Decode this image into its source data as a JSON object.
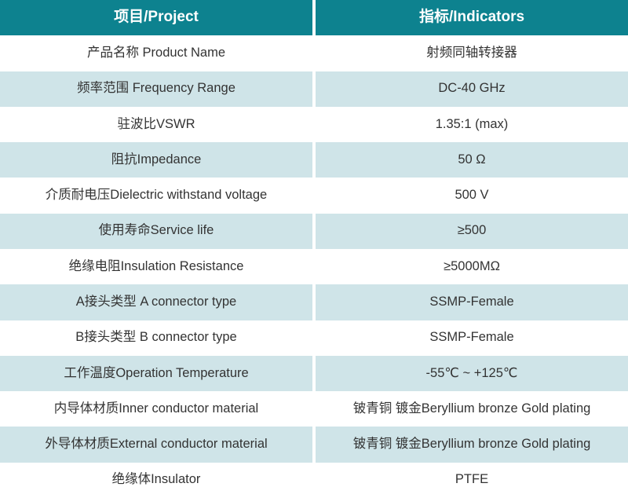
{
  "colors": {
    "header_bg": "#0d828f",
    "header_text": "#ffffff",
    "alt_row_bg": "#cfe4e8",
    "row_bg": "#ffffff",
    "body_text": "#333333"
  },
  "table": {
    "headers": {
      "project": "项目/Project",
      "indicator": "指标/Indicators"
    },
    "rows": [
      {
        "project": "产品名称 Product Name",
        "indicator": "射频同轴转接器"
      },
      {
        "project": "频率范围 Frequency Range",
        "indicator": "DC-40 GHz"
      },
      {
        "project": "驻波比VSWR",
        "indicator": "1.35:1 (max)"
      },
      {
        "project": "阻抗Impedance",
        "indicator": "50 Ω"
      },
      {
        "project": "介质耐电压Dielectric withstand voltage",
        "indicator": "500 V"
      },
      {
        "project": "使用寿命Service life",
        "indicator": "≥500"
      },
      {
        "project": "绝缘电阻Insulation Resistance",
        "indicator": "≥5000MΩ"
      },
      {
        "project": "A接头类型 A connector type",
        "indicator": "SSMP-Female"
      },
      {
        "project": "B接头类型 B connector type",
        "indicator": "SSMP-Female"
      },
      {
        "project": "工作温度Operation Temperature",
        "indicator": "-55℃ ~ +125℃"
      },
      {
        "project": "内导体材质Inner conductor material",
        "indicator": "铍青铜 镀金Beryllium bronze Gold plating"
      },
      {
        "project": "外导体材质External conductor material",
        "indicator": "铍青铜 镀金Beryllium bronze Gold plating"
      },
      {
        "project": "绝缘体Insulator",
        "indicator": "PTFE"
      }
    ]
  }
}
